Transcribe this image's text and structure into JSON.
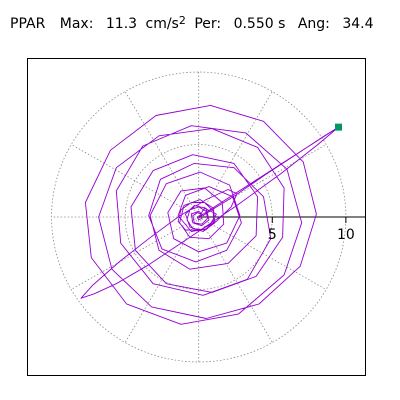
{
  "header": {
    "station": "PPAR",
    "max_label": "Max:",
    "max_value": "11.3",
    "max_unit": "cm/s",
    "max_unit_power": "2",
    "per_label": "Per:",
    "per_value": "0.550 s",
    "ang_label": "Ang:",
    "ang_value": "34.4"
  },
  "colors": {
    "trace": "#9400D3",
    "marker": "#009966",
    "grid": "#888888",
    "axis": "#000000",
    "background": "#ffffff"
  },
  "chart_data": {
    "type": "scatter",
    "title": "PPAR  Max: 11.3 cm/s2  Per: 0.550 s  Ang: 34.4",
    "xlabel": "",
    "ylabel": "",
    "max_amplitude": 11.3,
    "period_s": 0.55,
    "angle_deg": 34.4,
    "x_ticks": [
      5,
      10
    ],
    "x_tick_labels": [
      "5",
      "10"
    ],
    "radial_rings": [
      5,
      10
    ],
    "spoke_step_deg": 30,
    "xlim": [
      -11.6,
      11.3
    ],
    "ylim": [
      -10.9,
      10.9
    ],
    "grid": true,
    "series": [
      {
        "values_note": "",
        "points": [
          [
            0.0,
            0.0
          ],
          [
            0.4,
            0.6
          ],
          [
            1.2,
            0.2
          ],
          [
            0.6,
            -0.8
          ],
          [
            -0.5,
            -1.0
          ],
          [
            -1.4,
            0.1
          ],
          [
            -0.9,
            1.5
          ],
          [
            0.7,
            2.1
          ],
          [
            2.3,
            1.4
          ],
          [
            2.9,
            -0.4
          ],
          [
            1.9,
            -2.3
          ],
          [
            -0.2,
            -3.1
          ],
          [
            -2.5,
            -2.2
          ],
          [
            -3.4,
            0.1
          ],
          [
            -2.6,
            2.6
          ],
          [
            -0.3,
            3.7
          ],
          [
            2.4,
            3.4
          ],
          [
            4.4,
            1.4
          ],
          [
            4.9,
            -1.5
          ],
          [
            3.3,
            -4.3
          ],
          [
            0.3,
            -5.4
          ],
          [
            -3.1,
            -4.6
          ],
          [
            -5.3,
            -1.8
          ],
          [
            -5.6,
            1.8
          ],
          [
            -3.8,
            4.9
          ],
          [
            -0.5,
            6.3
          ],
          [
            3.2,
            5.8
          ],
          [
            6.0,
            3.3
          ],
          [
            7.0,
            -0.4
          ],
          [
            5.8,
            -4.0
          ],
          [
            2.7,
            -6.7
          ],
          [
            -1.2,
            -7.4
          ],
          [
            -4.9,
            -6.0
          ],
          [
            -7.3,
            -2.8
          ],
          [
            -7.7,
            1.0
          ],
          [
            -6.0,
            4.6
          ],
          [
            -2.9,
            7.0
          ],
          [
            0.8,
            7.7
          ],
          [
            4.4,
            6.6
          ],
          [
            7.1,
            3.8
          ],
          [
            8.0,
            0.2
          ],
          [
            6.9,
            -3.4
          ],
          [
            4.1,
            -6.0
          ],
          [
            0.5,
            -7.0
          ],
          [
            -3.2,
            -6.2
          ],
          [
            -5.9,
            -3.6
          ],
          [
            -6.8,
            0.0
          ],
          [
            -5.6,
            3.4
          ],
          [
            -2.7,
            5.6
          ],
          [
            0.9,
            6.1
          ],
          [
            4.0,
            4.8
          ],
          [
            5.8,
            2.0
          ],
          [
            5.7,
            -1.4
          ],
          [
            3.9,
            -4.1
          ],
          [
            0.9,
            -5.2
          ],
          [
            -2.2,
            -4.6
          ],
          [
            -4.3,
            -2.3
          ],
          [
            -4.6,
            0.7
          ],
          [
            -3.1,
            3.2
          ],
          [
            -0.4,
            4.3
          ],
          [
            2.4,
            3.7
          ],
          [
            4.0,
            1.4
          ],
          [
            3.9,
            -1.3
          ],
          [
            2.0,
            -3.2
          ],
          [
            -0.6,
            -3.6
          ],
          [
            -2.7,
            -2.3
          ],
          [
            -3.3,
            0.1
          ],
          [
            -2.2,
            2.3
          ],
          [
            0.1,
            3.1
          ],
          [
            2.1,
            2.2
          ],
          [
            2.8,
            0.1
          ],
          [
            1.9,
            -1.8
          ],
          [
            0.0,
            -2.4
          ],
          [
            -1.7,
            -1.5
          ],
          [
            -2.1,
            0.3
          ],
          [
            -1.2,
            1.8
          ],
          [
            0.4,
            2.0
          ],
          [
            1.6,
            1.0
          ],
          [
            1.7,
            -0.5
          ],
          [
            0.7,
            -1.5
          ],
          [
            -0.6,
            -1.4
          ],
          [
            -1.3,
            -0.4
          ],
          [
            -1.0,
            0.8
          ],
          [
            0.1,
            1.2
          ],
          [
            1.0,
            0.6
          ],
          [
            1.1,
            -0.4
          ],
          [
            0.3,
            -1.0
          ],
          [
            -0.6,
            -0.7
          ],
          [
            -0.9,
            0.2
          ],
          [
            -0.3,
            0.8
          ],
          [
            0.5,
            0.6
          ],
          [
            0.7,
            -0.2
          ],
          [
            0.2,
            -0.6
          ],
          [
            -0.4,
            -0.4
          ],
          [
            -0.5,
            0.2
          ],
          [
            0.0,
            0.4
          ],
          [
            0.3,
            0.1
          ],
          [
            0.9,
            0.5
          ],
          [
            2.5,
            1.5
          ],
          [
            4.5,
            2.9
          ],
          [
            6.6,
            4.3
          ],
          [
            8.4,
            5.5
          ],
          [
            9.5,
            6.2
          ],
          [
            8.1,
            5.0
          ],
          [
            5.6,
            3.0
          ],
          [
            2.6,
            0.8
          ],
          [
            -0.6,
            -1.4
          ],
          [
            -3.4,
            -3.3
          ],
          [
            -5.6,
            -4.6
          ],
          [
            -7.1,
            -5.3
          ],
          [
            -8.0,
            -5.6
          ],
          [
            -7.2,
            -4.7
          ],
          [
            -5.4,
            -3.1
          ],
          [
            -3.4,
            -1.5
          ],
          [
            -1.4,
            0.0
          ],
          [
            0.5,
            1.2
          ],
          [
            2.0,
            1.9
          ],
          [
            2.6,
            1.6
          ],
          [
            2.2,
            0.7
          ],
          [
            1.2,
            -0.3
          ],
          [
            0.1,
            -0.9
          ],
          [
            -0.9,
            -0.9
          ],
          [
            -1.4,
            -0.3
          ],
          [
            -1.2,
            0.5
          ],
          [
            -0.5,
            1.0
          ],
          [
            0.4,
            1.0
          ],
          [
            1.0,
            0.4
          ],
          [
            1.0,
            -0.4
          ],
          [
            0.4,
            -0.9
          ],
          [
            -0.4,
            -0.8
          ],
          [
            -0.8,
            -0.2
          ],
          [
            -0.6,
            0.5
          ],
          [
            0.0,
            0.7
          ],
          [
            0.5,
            0.4
          ],
          [
            0.6,
            -0.1
          ],
          [
            0.2,
            -0.5
          ],
          [
            -0.3,
            -0.4
          ],
          [
            -0.4,
            0.1
          ],
          [
            -0.1,
            0.3
          ],
          [
            0.2,
            0.2
          ],
          [
            0.2,
            -0.1
          ],
          [
            0.0,
            -0.2
          ],
          [
            -0.1,
            0.0
          ],
          [
            0.0,
            0.0
          ],
          [
            9.5,
            6.2
          ]
        ]
      }
    ]
  }
}
